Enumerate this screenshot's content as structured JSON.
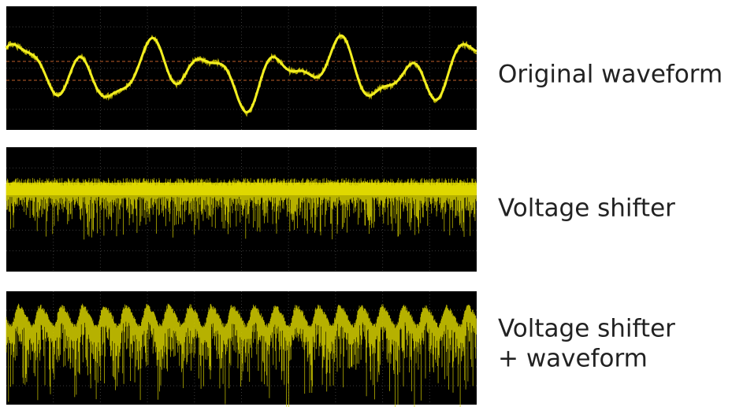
{
  "panels": [
    {
      "label": [
        "Original waveform"
      ]
    },
    {
      "label": [
        "Voltage shifter"
      ]
    },
    {
      "label": [
        "Voltage shifter",
        "+ waveform"
      ]
    }
  ]
}
